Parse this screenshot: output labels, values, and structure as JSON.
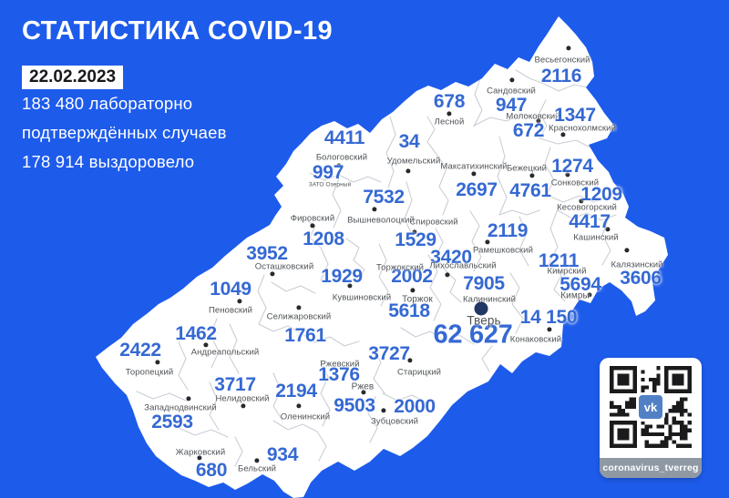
{
  "header": {
    "title": "СТАТИСТИКА COVID-19",
    "date": "22.02.2023",
    "stats_line1": "183 480 лабораторно",
    "stats_line2": "подтверждённых случаев",
    "stats_line3": "178 914 выздоровело"
  },
  "colors": {
    "bg": "#1d5beb",
    "number": "#3569d3",
    "label": "#4f5357",
    "map_fill": "#ffffff",
    "border_line": "#c9ced6",
    "dot": "#26292d",
    "tver_dot": "#233764",
    "qr_footer": "#8e99a4",
    "vk": "#5181c4",
    "date_text": "#17181b"
  },
  "map": {
    "region": "Тверская область",
    "districts": [
      {
        "name": "Весьегонский",
        "value": "2116",
        "label": [
          617,
          66
        ],
        "val": [
          616,
          84
        ],
        "dot": [
          624,
          53
        ]
      },
      {
        "name": "Сандовский",
        "value": "947",
        "label": [
          561,
          100
        ],
        "val": [
          561,
          116
        ],
        "dot": [
          562,
          88
        ]
      },
      {
        "name": "Молоковский",
        "value": "672",
        "label": [
          585,
          128
        ],
        "val": [
          580,
          144
        ],
        "dot": [
          591,
          133
        ]
      },
      {
        "name": "Краснохолмский",
        "value": "1347",
        "label": [
          639,
          141
        ],
        "val": [
          631,
          127
        ],
        "dot": [
          618,
          148
        ]
      },
      {
        "name": "Лесной",
        "value": "678",
        "label": [
          493,
          134
        ],
        "val": [
          493,
          112
        ],
        "dot": [
          493,
          125
        ]
      },
      {
        "name": "Удомельский",
        "value": "34",
        "label": [
          454,
          177
        ],
        "val": [
          449,
          156
        ],
        "dot": [
          448,
          188
        ]
      },
      {
        "name": "Бологовский",
        "value": "4411",
        "label": [
          375,
          173
        ],
        "val": [
          378,
          152
        ],
        "dot": [
          372,
          182
        ]
      },
      {
        "name": "ЗАТО Озерный",
        "value": "997",
        "label": [
          362,
          203
        ],
        "val": [
          360,
          190
        ],
        "lfs": 6.5
      },
      {
        "name": "Максатихинский",
        "value": "2697",
        "label": [
          520,
          183
        ],
        "val": [
          523,
          209
        ],
        "dot": [
          520,
          191
        ]
      },
      {
        "name": "Бежецкий",
        "value": "4761",
        "label": [
          578,
          185
        ],
        "val": [
          582,
          210
        ],
        "dot": [
          584,
          193
        ]
      },
      {
        "name": "Сонковский",
        "value": "1274",
        "label": [
          631,
          201
        ],
        "val": [
          628,
          183
        ],
        "dot": [
          623,
          192
        ]
      },
      {
        "name": "Кесовогорский",
        "value": "1209",
        "label": [
          644,
          228
        ],
        "val": [
          660,
          214
        ],
        "dot": [
          638,
          221
        ]
      },
      {
        "name": "Кашинский",
        "value": "4417",
        "label": [
          654,
          261
        ],
        "val": [
          647,
          244
        ],
        "dot": [
          667,
          252
        ]
      },
      {
        "name": "Калязинский",
        "value": "3606",
        "label": [
          699,
          291
        ],
        "val": [
          703,
          306
        ],
        "dot": [
          688,
          275
        ]
      },
      {
        "name": "Кимрский",
        "value": "1211",
        "label": [
          622,
          298
        ],
        "val": [
          613,
          287
        ]
      },
      {
        "name": "Кимры",
        "value": "5694",
        "label": [
          631,
          325
        ],
        "val": [
          637,
          313
        ],
        "dot": [
          647,
          324
        ],
        "lfs": 10
      },
      {
        "name": "Конаковский",
        "value": "14 150",
        "label": [
          588,
          373
        ],
        "val": [
          602,
          349
        ],
        "dot": [
          603,
          362
        ]
      },
      {
        "name": "Рамешковский",
        "value": "2119",
        "label": [
          552,
          275
        ],
        "val": [
          557,
          254
        ],
        "dot": [
          535,
          266
        ]
      },
      {
        "name": "Лихославльский",
        "value": "3420",
        "label": [
          508,
          292
        ],
        "val": [
          495,
          283
        ],
        "dot": [
          491,
          302
        ]
      },
      {
        "name": "Спировский",
        "value": "1529",
        "label": [
          476,
          244
        ],
        "val": [
          456,
          264
        ],
        "dot": [
          455,
          255
        ]
      },
      {
        "name": "Вышневолоцкий",
        "value": "7532",
        "label": [
          418,
          242
        ],
        "val": [
          421,
          217
        ],
        "dot": [
          411,
          230
        ]
      },
      {
        "name": "Фировский",
        "value": "1208",
        "label": [
          343,
          240
        ],
        "val": [
          355,
          263
        ],
        "dot": [
          343,
          248
        ]
      },
      {
        "name": "Осташковский",
        "value": "3952",
        "label": [
          312,
          293
        ],
        "val": [
          293,
          279
        ],
        "dot": [
          299,
          301
        ]
      },
      {
        "name": "Пеновский",
        "value": "1049",
        "label": [
          253,
          341
        ],
        "val": [
          253,
          318
        ],
        "dot": [
          263,
          331
        ]
      },
      {
        "name": "Селижаровский",
        "value": "1761",
        "label": [
          328,
          348
        ],
        "val": [
          335,
          369
        ],
        "dot": [
          328,
          338
        ]
      },
      {
        "name": "Кувшиновский",
        "value": "1929",
        "label": [
          397,
          327
        ],
        "val": [
          375,
          304
        ],
        "dot": [
          384,
          314
        ]
      },
      {
        "name": "Торжокский",
        "value": "2002",
        "label": [
          439,
          294
        ],
        "val": [
          452,
          304
        ]
      },
      {
        "name": "Торжок",
        "value": "5618",
        "label": [
          458,
          329
        ],
        "val": [
          449,
          342
        ],
        "dot": [
          453,
          319
        ],
        "lfs": 10
      },
      {
        "name": "Калининский",
        "value": "7905",
        "label": [
          537,
          329
        ],
        "val": [
          531,
          312
        ]
      },
      {
        "name": "Тверь",
        "value": "62 627",
        "label": [
          531,
          352
        ],
        "val": [
          519,
          368
        ],
        "dot": [
          528,
          339
        ],
        "lfs": 13.5,
        "vfs": 29,
        "dr": 7.5
      },
      {
        "name": "Андреапольский",
        "value": "1462",
        "label": [
          247,
          387
        ],
        "val": [
          215,
          367
        ],
        "dot": [
          226,
          379
        ]
      },
      {
        "name": "Торопецкий",
        "value": "2422",
        "label": [
          164,
          409
        ],
        "val": [
          154,
          385
        ],
        "dot": [
          173,
          398
        ]
      },
      {
        "name": "Западнодвинский",
        "value": "2593",
        "label": [
          198,
          448
        ],
        "val": [
          189,
          464
        ],
        "dot": [
          207,
          438
        ]
      },
      {
        "name": "Нелидовский",
        "value": "3717",
        "label": [
          266,
          438
        ],
        "val": [
          258,
          423
        ],
        "dot": [
          267,
          446
        ]
      },
      {
        "name": "Оленинский",
        "value": "2194",
        "label": [
          335,
          458
        ],
        "val": [
          325,
          430
        ],
        "dot": [
          328,
          446
        ]
      },
      {
        "name": "Жарковский",
        "value": "680",
        "label": [
          220,
          497
        ],
        "val": [
          232,
          517
        ],
        "dot": [
          219,
          503
        ]
      },
      {
        "name": "Бельский",
        "value": "934",
        "label": [
          282,
          515
        ],
        "val": [
          310,
          500
        ],
        "dot": [
          282,
          506
        ]
      },
      {
        "name": "Ржевский",
        "value": "1376",
        "label": [
          373,
          400
        ],
        "val": [
          372,
          412
        ]
      },
      {
        "name": "Ржев",
        "value": "9503",
        "label": [
          398,
          425
        ],
        "val": [
          389,
          446
        ],
        "dot": [
          399,
          431
        ],
        "lfs": 10
      },
      {
        "name": "Зубцовский",
        "value": "2000",
        "label": [
          433,
          463
        ],
        "val": [
          455,
          447
        ],
        "dot": [
          421,
          451
        ]
      },
      {
        "name": "Старицкий",
        "value": "3727",
        "label": [
          460,
          409
        ],
        "val": [
          427,
          389
        ],
        "dot": [
          450,
          396
        ]
      }
    ]
  },
  "qr": {
    "label": "coronavirus_tverreg",
    "vk_label": "vk"
  }
}
